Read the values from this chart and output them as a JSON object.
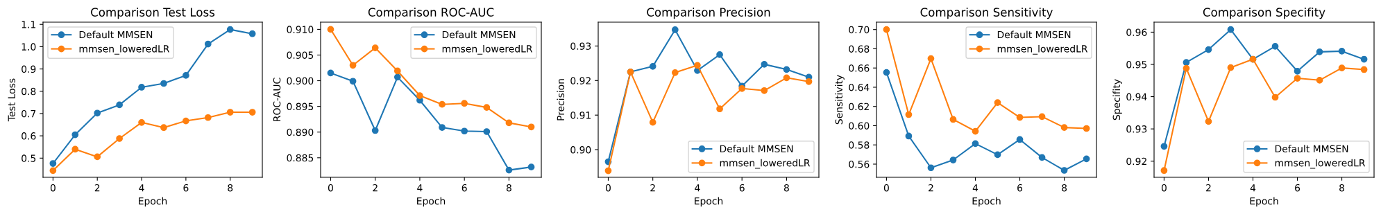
{
  "chart_data": [
    {
      "type": "line",
      "title": "Comparison Test Loss",
      "xlabel": "Epoch",
      "ylabel": "Test Loss",
      "x": [
        0,
        1,
        2,
        3,
        4,
        5,
        6,
        7,
        8,
        9
      ],
      "xlim": [
        -0.45,
        9.45
      ],
      "xticks": [
        0,
        2,
        4,
        6,
        8
      ],
      "ylim": [
        0.414,
        1.11
      ],
      "yticks": [
        {
          "value": 0.5,
          "label": "0.5"
        },
        {
          "value": 0.6,
          "label": "0.6"
        },
        {
          "value": 0.7,
          "label": "0.7"
        },
        {
          "value": 0.8,
          "label": "0.8"
        },
        {
          "value": 0.9,
          "label": "0.9"
        },
        {
          "value": 1.0,
          "label": "1.0"
        },
        {
          "value": 1.1,
          "label": "1.1"
        }
      ],
      "marker": "circle",
      "line_style": "solid",
      "grid": false,
      "legend": "top left",
      "series": [
        {
          "name": "Default MMSEN",
          "color": "#1f77b4",
          "values": [
            0.476,
            0.605,
            0.702,
            0.739,
            0.818,
            0.835,
            0.871,
            1.012,
            1.077,
            1.058
          ]
        },
        {
          "name": "mmsen_loweredLR",
          "color": "#ff7f0e",
          "values": [
            0.444,
            0.54,
            0.506,
            0.588,
            0.66,
            0.637,
            0.667,
            0.682,
            0.706,
            0.706
          ]
        }
      ]
    },
    {
      "type": "line",
      "title": "Comparison ROC-AUC",
      "xlabel": "Epoch",
      "ylabel": "ROC-AUC",
      "x": [
        0,
        1,
        2,
        3,
        4,
        5,
        6,
        7,
        8,
        9
      ],
      "xlim": [
        -0.45,
        9.45
      ],
      "xticks": [
        0,
        2,
        4,
        6,
        8
      ],
      "ylim": [
        0.8812,
        0.9114
      ],
      "yticks": [
        {
          "value": 0.885,
          "label": "0.885"
        },
        {
          "value": 0.89,
          "label": "0.890"
        },
        {
          "value": 0.895,
          "label": "0.895"
        },
        {
          "value": 0.9,
          "label": "0.900"
        },
        {
          "value": 0.905,
          "label": "0.905"
        },
        {
          "value": 0.91,
          "label": "0.910"
        }
      ],
      "marker": "circle",
      "line_style": "solid",
      "grid": false,
      "legend": "top right",
      "series": [
        {
          "name": "Default MMSEN",
          "color": "#1f77b4",
          "values": [
            0.9015,
            0.8999,
            0.8903,
            0.9007,
            0.8962,
            0.8909,
            0.8902,
            0.8901,
            0.8826,
            0.8832
          ]
        },
        {
          "name": "mmsen_loweredLR",
          "color": "#ff7f0e",
          "values": [
            0.91,
            0.903,
            0.9064,
            0.9019,
            0.8971,
            0.8954,
            0.8956,
            0.8948,
            0.8918,
            0.891
          ]
        }
      ]
    },
    {
      "type": "line",
      "title": "Comparison Precision",
      "xlabel": "Epoch",
      "ylabel": "Precision",
      "x": [
        0,
        1,
        2,
        3,
        4,
        5,
        6,
        7,
        8,
        9
      ],
      "xlim": [
        -0.45,
        9.45
      ],
      "xticks": [
        0,
        2,
        4,
        6,
        8
      ],
      "ylim": [
        0.892,
        0.9369
      ],
      "yticks": [
        {
          "value": 0.9,
          "label": "0.90"
        },
        {
          "value": 0.91,
          "label": "0.91"
        },
        {
          "value": 0.92,
          "label": "0.92"
        },
        {
          "value": 0.93,
          "label": "0.93"
        }
      ],
      "marker": "circle",
      "line_style": "solid",
      "grid": false,
      "legend": "bottom right",
      "series": [
        {
          "name": "Default MMSEN",
          "color": "#1f77b4",
          "values": [
            0.8965,
            0.9225,
            0.9241,
            0.9347,
            0.9229,
            0.9275,
            0.9184,
            0.9247,
            0.9232,
            0.921
          ]
        },
        {
          "name": "mmsen_loweredLR",
          "color": "#ff7f0e",
          "values": [
            0.8939,
            0.9225,
            0.9079,
            0.9223,
            0.9244,
            0.9118,
            0.9177,
            0.9171,
            0.9208,
            0.9197
          ]
        }
      ]
    },
    {
      "type": "line",
      "title": "Comparison Sensitivity",
      "xlabel": "Epoch",
      "ylabel": "Sensitivity",
      "x": [
        0,
        1,
        2,
        3,
        4,
        5,
        6,
        7,
        8,
        9
      ],
      "xlim": [
        -0.45,
        9.45
      ],
      "xticks": [
        0,
        2,
        4,
        6,
        8
      ],
      "ylim": [
        0.5463,
        0.7077
      ],
      "yticks": [
        {
          "value": 0.56,
          "label": "0.56"
        },
        {
          "value": 0.58,
          "label": "0.58"
        },
        {
          "value": 0.6,
          "label": "0.60"
        },
        {
          "value": 0.62,
          "label": "0.62"
        },
        {
          "value": 0.64,
          "label": "0.64"
        },
        {
          "value": 0.66,
          "label": "0.66"
        },
        {
          "value": 0.68,
          "label": "0.68"
        },
        {
          "value": 0.7,
          "label": "0.70"
        }
      ],
      "marker": "circle",
      "line_style": "solid",
      "grid": false,
      "legend": "top right",
      "series": [
        {
          "name": "Default MMSEN",
          "color": "#1f77b4",
          "values": [
            0.6554,
            0.5892,
            0.5562,
            0.5643,
            0.5813,
            0.5698,
            0.5856,
            0.5669,
            0.5535,
            0.5655
          ]
        },
        {
          "name": "mmsen_loweredLR",
          "color": "#ff7f0e",
          "values": [
            0.7,
            0.6115,
            0.6698,
            0.6065,
            0.5942,
            0.624,
            0.6086,
            0.6094,
            0.5981,
            0.5971
          ]
        }
      ]
    },
    {
      "type": "line",
      "title": "Comparison Specifity",
      "xlabel": "Epoch",
      "ylabel": "Specifity",
      "x": [
        0,
        1,
        2,
        3,
        4,
        5,
        6,
        7,
        8,
        9
      ],
      "xlim": [
        -0.45,
        9.45
      ],
      "xticks": [
        0,
        2,
        4,
        6,
        8
      ],
      "ylim": [
        0.915,
        0.9631
      ],
      "yticks": [
        {
          "value": 0.92,
          "label": "0.92"
        },
        {
          "value": 0.93,
          "label": "0.93"
        },
        {
          "value": 0.94,
          "label": "0.94"
        },
        {
          "value": 0.95,
          "label": "0.95"
        },
        {
          "value": 0.96,
          "label": "0.96"
        }
      ],
      "marker": "circle",
      "line_style": "solid",
      "grid": false,
      "legend": "bottom right",
      "series": [
        {
          "name": "Default MMSEN",
          "color": "#1f77b4",
          "values": [
            0.9246,
            0.9506,
            0.9546,
            0.9608,
            0.9516,
            0.9556,
            0.9479,
            0.9539,
            0.9541,
            0.9516
          ]
        },
        {
          "name": "mmsen_loweredLR",
          "color": "#ff7f0e",
          "values": [
            0.9171,
            0.9488,
            0.9323,
            0.949,
            0.9516,
            0.9398,
            0.9457,
            0.9451,
            0.9489,
            0.9484
          ]
        }
      ]
    }
  ]
}
